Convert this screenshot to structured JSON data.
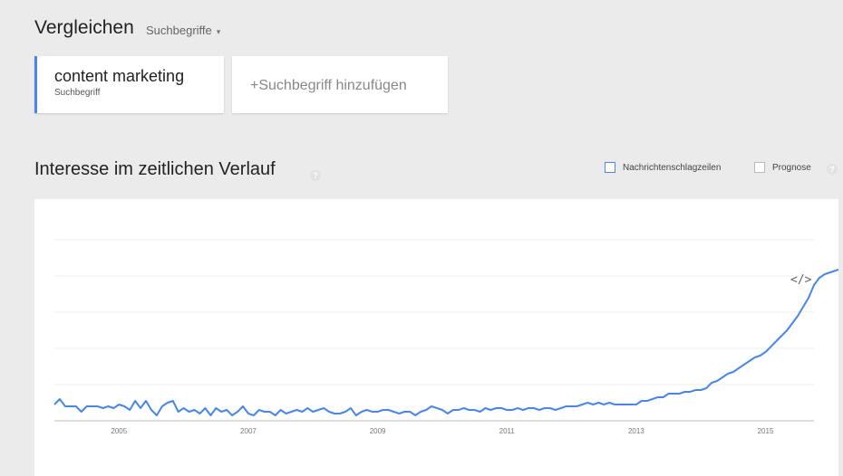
{
  "compare": {
    "title": "Vergleichen",
    "mode_label": "Suchbegriffe",
    "caret_icon": "▾"
  },
  "terms": [
    {
      "label": "content marketing",
      "type": "Suchbegriff",
      "color": "#4a86e8"
    }
  ],
  "add_term": {
    "label": "+Suchbegriff hinzufügen"
  },
  "section": {
    "title": "Interesse im zeitlichen Verlauf",
    "help_icon": "?"
  },
  "options": {
    "headlines_label": "Nachrichtenschlagzeilen",
    "headlines_color": "#4a86e8",
    "forecast_label": "Prognose",
    "forecast_help_icon": "?"
  },
  "embed": {
    "icon": "</>"
  },
  "chart_data": {
    "type": "line",
    "title": "",
    "xlabel": "",
    "ylabel": "",
    "x_start": 2004.0,
    "x_step": 0.0833333,
    "xticks": [
      "2005",
      "2007",
      "2009",
      "2011",
      "2013",
      "2015"
    ],
    "xtick_values": [
      2005.0,
      2007.0,
      2009.0,
      2011.0,
      2013.0,
      2015.0
    ],
    "xlim": [
      2004.0,
      2015.75
    ],
    "ylim": [
      0,
      100
    ],
    "gridlines": [
      20,
      40,
      60,
      80,
      100
    ],
    "series": [
      {
        "color": "#4a86e8",
        "values": [
          9,
          12,
          8,
          8,
          8,
          5,
          8,
          8,
          8,
          7,
          8,
          7,
          9,
          8,
          6,
          11,
          7,
          11,
          6,
          3,
          8,
          10,
          11,
          5,
          7,
          5,
          6,
          4,
          7,
          3,
          7,
          5,
          6,
          3,
          5,
          8,
          4,
          3,
          6,
          5,
          5,
          3,
          6,
          4,
          5,
          6,
          5,
          7,
          5,
          6,
          7,
          5,
          4,
          4,
          5,
          7,
          3,
          5,
          6,
          5,
          5,
          6,
          6,
          5,
          4,
          5,
          5,
          3,
          5,
          6,
          8,
          7,
          6,
          4,
          6,
          6,
          7,
          6,
          6,
          5,
          7,
          6,
          7,
          7,
          6,
          6,
          7,
          6,
          7,
          7,
          6,
          7,
          7,
          6,
          7,
          8,
          8,
          8,
          9,
          10,
          9,
          10,
          9,
          10,
          9,
          9,
          9,
          9,
          9,
          11,
          11,
          12,
          13,
          13,
          15,
          15,
          15,
          16,
          16,
          17,
          17,
          18,
          21,
          22,
          24,
          26,
          27,
          29,
          31,
          33,
          35,
          36,
          38,
          41,
          44,
          47,
          50,
          54,
          58,
          63,
          68,
          75,
          79,
          81,
          82,
          83,
          84,
          84,
          84,
          85,
          86,
          87,
          87,
          88,
          88,
          89,
          90,
          91,
          92,
          93,
          93
        ]
      }
    ]
  }
}
